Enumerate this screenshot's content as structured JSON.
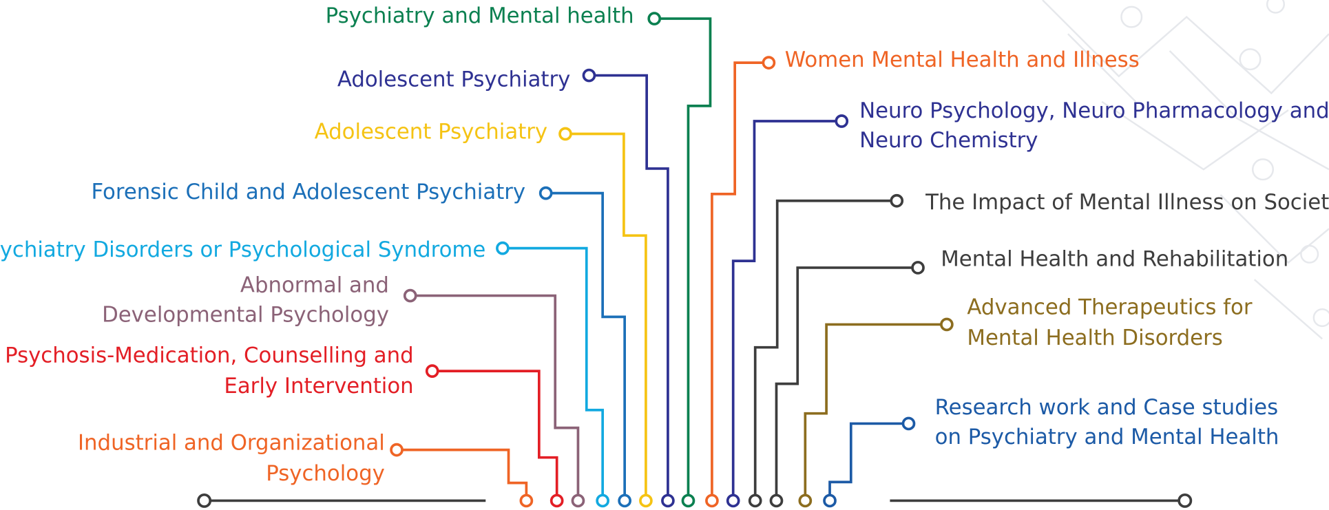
{
  "topics": [
    {
      "lines": [
        "Psychiatry and Mental health"
      ]
    },
    {
      "lines": [
        "Adolescent Psychiatry"
      ]
    },
    {
      "lines": [
        "Adolescent Psychiatry"
      ]
    },
    {
      "lines": [
        "Forensic Child and Adolescent Psychiatry"
      ]
    },
    {
      "lines": [
        "Psychiatry Disorders or Psychological Syndrome"
      ]
    },
    {
      "lines": [
        "Abnormal and",
        "Developmental Psychology"
      ]
    },
    {
      "lines": [
        "Psychosis-Medication, Counselling and",
        "Early Intervention"
      ]
    },
    {
      "lines": [
        "Industrial and Organizational",
        "Psychology"
      ]
    },
    {
      "lines": [
        "Women Mental Health and Illness"
      ]
    },
    {
      "lines": [
        "Neuro Psychology, Neuro Pharmacology and",
        "Neuro Chemistry"
      ]
    },
    {
      "lines": [
        "The Impact of Mental Illness on Society"
      ]
    },
    {
      "lines": [
        "Mental Health and Rehabilitation"
      ]
    },
    {
      "lines": [
        "Advanced Therapeutics for",
        "Mental Health Disorders"
      ]
    },
    {
      "lines": [
        "Research work and Case studies",
        "on Psychiatry and Mental Health"
      ]
    }
  ]
}
